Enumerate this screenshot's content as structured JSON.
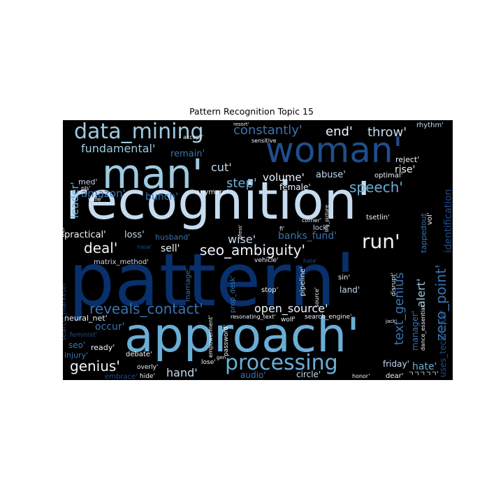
{
  "figure": {
    "title": "Pattern Recognition Topic 15"
  },
  "colors": {
    "background": "#000000",
    "dark": "#08306b",
    "medium_dark": "#1f4e8c",
    "medium": "#3a73b0",
    "light": "#6aaed6",
    "pale": "#9ecae1",
    "very_pale": "#c6dbef",
    "white": "#f0f4fa"
  },
  "words": [
    {
      "text": "pattern'",
      "size": 104,
      "color": "dark"
    },
    {
      "text": "recognition'",
      "size": 74,
      "color": "very_pale"
    },
    {
      "text": "approach'",
      "size": 68,
      "color": "light"
    },
    {
      "text": "man'",
      "size": 58,
      "color": "pale"
    },
    {
      "text": "woman'",
      "size": 50,
      "color": "medium_dark"
    },
    {
      "text": "data_mining",
      "size": 30,
      "color": "pale"
    },
    {
      "text": "processing",
      "size": 30,
      "color": "light"
    },
    {
      "text": "zero_point'",
      "size": 20,
      "color": "medium"
    },
    {
      "text": "text_genius",
      "size": 18,
      "color": "medium"
    },
    {
      "text": "run'",
      "size": 28,
      "color": "white"
    },
    {
      "text": "reveals_contact'",
      "size": 20,
      "color": "medium"
    },
    {
      "text": "seo_ambiguity'",
      "size": 20,
      "color": "white"
    },
    {
      "text": "speech'",
      "size": 20,
      "color": "light"
    },
    {
      "text": "genius'",
      "size": 20,
      "color": "white"
    },
    {
      "text": "deal'",
      "size": 20,
      "color": "white"
    },
    {
      "text": "constantly'",
      "size": 18,
      "color": "medium"
    },
    {
      "text": "end'",
      "size": 18,
      "color": "white"
    },
    {
      "text": "throw'",
      "size": 18,
      "color": "very_pale"
    },
    {
      "text": "fundamental'",
      "size": 16,
      "color": "pale"
    },
    {
      "text": "step'",
      "size": 18,
      "color": "light"
    },
    {
      "text": "cut'",
      "size": 16,
      "color": "very_pale"
    },
    {
      "text": "volume'",
      "size": 15,
      "color": "white"
    },
    {
      "text": "abuse'",
      "size": 13,
      "color": "very_pale"
    },
    {
      "text": "rise'",
      "size": 14,
      "color": "white"
    },
    {
      "text": "female'",
      "size": 12,
      "color": "white"
    },
    {
      "text": "amazon'",
      "size": 15,
      "color": "medium"
    },
    {
      "text": "bunch'",
      "size": 14,
      "color": "medium"
    },
    {
      "text": "leader'",
      "size": 15,
      "color": "light"
    },
    {
      "text": "remain'",
      "size": 13,
      "color": "medium"
    },
    {
      "text": "wise'",
      "size": 16,
      "color": "very_pale"
    },
    {
      "text": "banks_fund'",
      "size": 14,
      "color": "medium"
    },
    {
      "text": "practical'",
      "size": 13,
      "color": "white"
    },
    {
      "text": "loss'",
      "size": 13,
      "color": "very_pale"
    },
    {
      "text": "sell'",
      "size": 14,
      "color": "white"
    },
    {
      "text": "alert'",
      "size": 16,
      "color": "pale"
    },
    {
      "text": "identification",
      "size": 14,
      "color": "medium_dark"
    },
    {
      "text": "open_source'",
      "size": 16,
      "color": "white"
    },
    {
      "text": "hand'",
      "size": 16,
      "color": "very_pale"
    },
    {
      "text": "hate'",
      "size": 14,
      "color": "light"
    },
    {
      "text": "occur'",
      "size": 14,
      "color": "medium"
    },
    {
      "text": "friday'",
      "size": 12,
      "color": "very_pale"
    },
    {
      "text": "audio'",
      "size": 12,
      "color": "medium"
    },
    {
      "text": "circle'",
      "size": 12,
      "color": "very_pale"
    },
    {
      "text": "ready'",
      "size": 11,
      "color": "white"
    },
    {
      "text": "seo'",
      "size": 12,
      "color": "medium"
    },
    {
      "text": "injury'",
      "size": 11,
      "color": "medium"
    },
    {
      "text": "embrace'",
      "size": 10,
      "color": "medium_dark"
    },
    {
      "text": "hide'",
      "size": 9,
      "color": "white"
    },
    {
      "text": "debate'",
      "size": 10,
      "color": "white"
    },
    {
      "text": "overly'",
      "size": 9,
      "color": "white"
    },
    {
      "text": "lose'",
      "size": 9,
      "color": "white"
    },
    {
      "text": "land'",
      "size": 12,
      "color": "very_pale"
    },
    {
      "text": "manager'",
      "size": 12,
      "color": "medium"
    },
    {
      "text": "uses_technique'",
      "size": 12,
      "color": "medium_dark"
    },
    {
      "text": "dear'",
      "size": 10,
      "color": "white"
    },
    {
      "text": "ㄱㄱㄱㄱㄱ'",
      "size": 9,
      "color": "white"
    },
    {
      "text": "honor'",
      "size": 8,
      "color": "white"
    },
    {
      "text": "search_engine'",
      "size": 9,
      "color": "white"
    },
    {
      "text": "pipeline'",
      "size": 10,
      "color": "white"
    },
    {
      "text": "stop'",
      "size": 10,
      "color": "white"
    },
    {
      "text": "wolf'",
      "size": 9,
      "color": "white"
    },
    {
      "text": "resonating_text'",
      "size": 8,
      "color": "white"
    },
    {
      "text": "dance_essential",
      "size": 8,
      "color": "white"
    },
    {
      "text": "jack'",
      "size": 7,
      "color": "white"
    },
    {
      "text": "disrupt'",
      "size": 9,
      "color": "white"
    },
    {
      "text": "sin'",
      "size": 10,
      "color": "white"
    },
    {
      "text": "source'",
      "size": 8,
      "color": "white"
    },
    {
      "text": "neural_net'",
      "size": 11,
      "color": "white"
    },
    {
      "text": "feminist'",
      "size": 9,
      "color": "medium_dark"
    },
    {
      "text": "search_marketer",
      "size": 10,
      "color": "medium_dark"
    },
    {
      "text": "matrix_method'",
      "size": 10,
      "color": "very_pale"
    },
    {
      "text": "husband'",
      "size": 11,
      "color": "medium"
    },
    {
      "text": "nasa'",
      "size": 8,
      "color": "medium_dark"
    },
    {
      "text": "marriage'",
      "size": 10,
      "color": "medium"
    },
    {
      "text": "prop_desk'",
      "size": 10,
      "color": "medium"
    },
    {
      "text": "password'",
      "size": 9,
      "color": "white"
    },
    {
      "text": "empowerment'",
      "size": 8,
      "color": "white"
    },
    {
      "text": "vehicle'",
      "size": 9,
      "color": "white"
    },
    {
      "text": "hate'",
      "size": 8,
      "color": "medium_dark"
    },
    {
      "text": "press'",
      "size": 7,
      "color": "white"
    },
    {
      "text": "ocr'",
      "size": 10,
      "color": "white"
    },
    {
      "text": "med'",
      "size": 11,
      "color": "very_pale"
    },
    {
      "text": "pls'",
      "size": 8,
      "color": "white"
    },
    {
      "text": "wife'",
      "size": 9,
      "color": "white"
    },
    {
      "text": "anymore'",
      "size": 10,
      "color": "white"
    },
    {
      "text": "accept'",
      "size": 8,
      "color": "white"
    },
    {
      "text": "resort'",
      "size": 7,
      "color": "white"
    },
    {
      "text": "sensitive",
      "size": 8,
      "color": "white"
    },
    {
      "text": "reject'",
      "size": 11,
      "color": "white"
    },
    {
      "text": "rhythm'",
      "size": 10,
      "color": "very_pale"
    },
    {
      "text": "optimal'",
      "size": 10,
      "color": "white"
    },
    {
      "text": "tsetlin'",
      "size": 10,
      "color": "white"
    },
    {
      "text": "corner'",
      "size": 8,
      "color": "white"
    },
    {
      "text": "lock'",
      "size": 10,
      "color": "very_pale"
    },
    {
      "text": "fi'",
      "size": 8,
      "color": "white"
    },
    {
      "text": "big_picture",
      "size": 7,
      "color": "white"
    },
    {
      "text": "tappedout",
      "size": 11,
      "color": "medium"
    },
    {
      "text": "vol'",
      "size": 10,
      "color": "white"
    },
    {
      "text": "gen",
      "size": 7,
      "color": "white"
    }
  ]
}
